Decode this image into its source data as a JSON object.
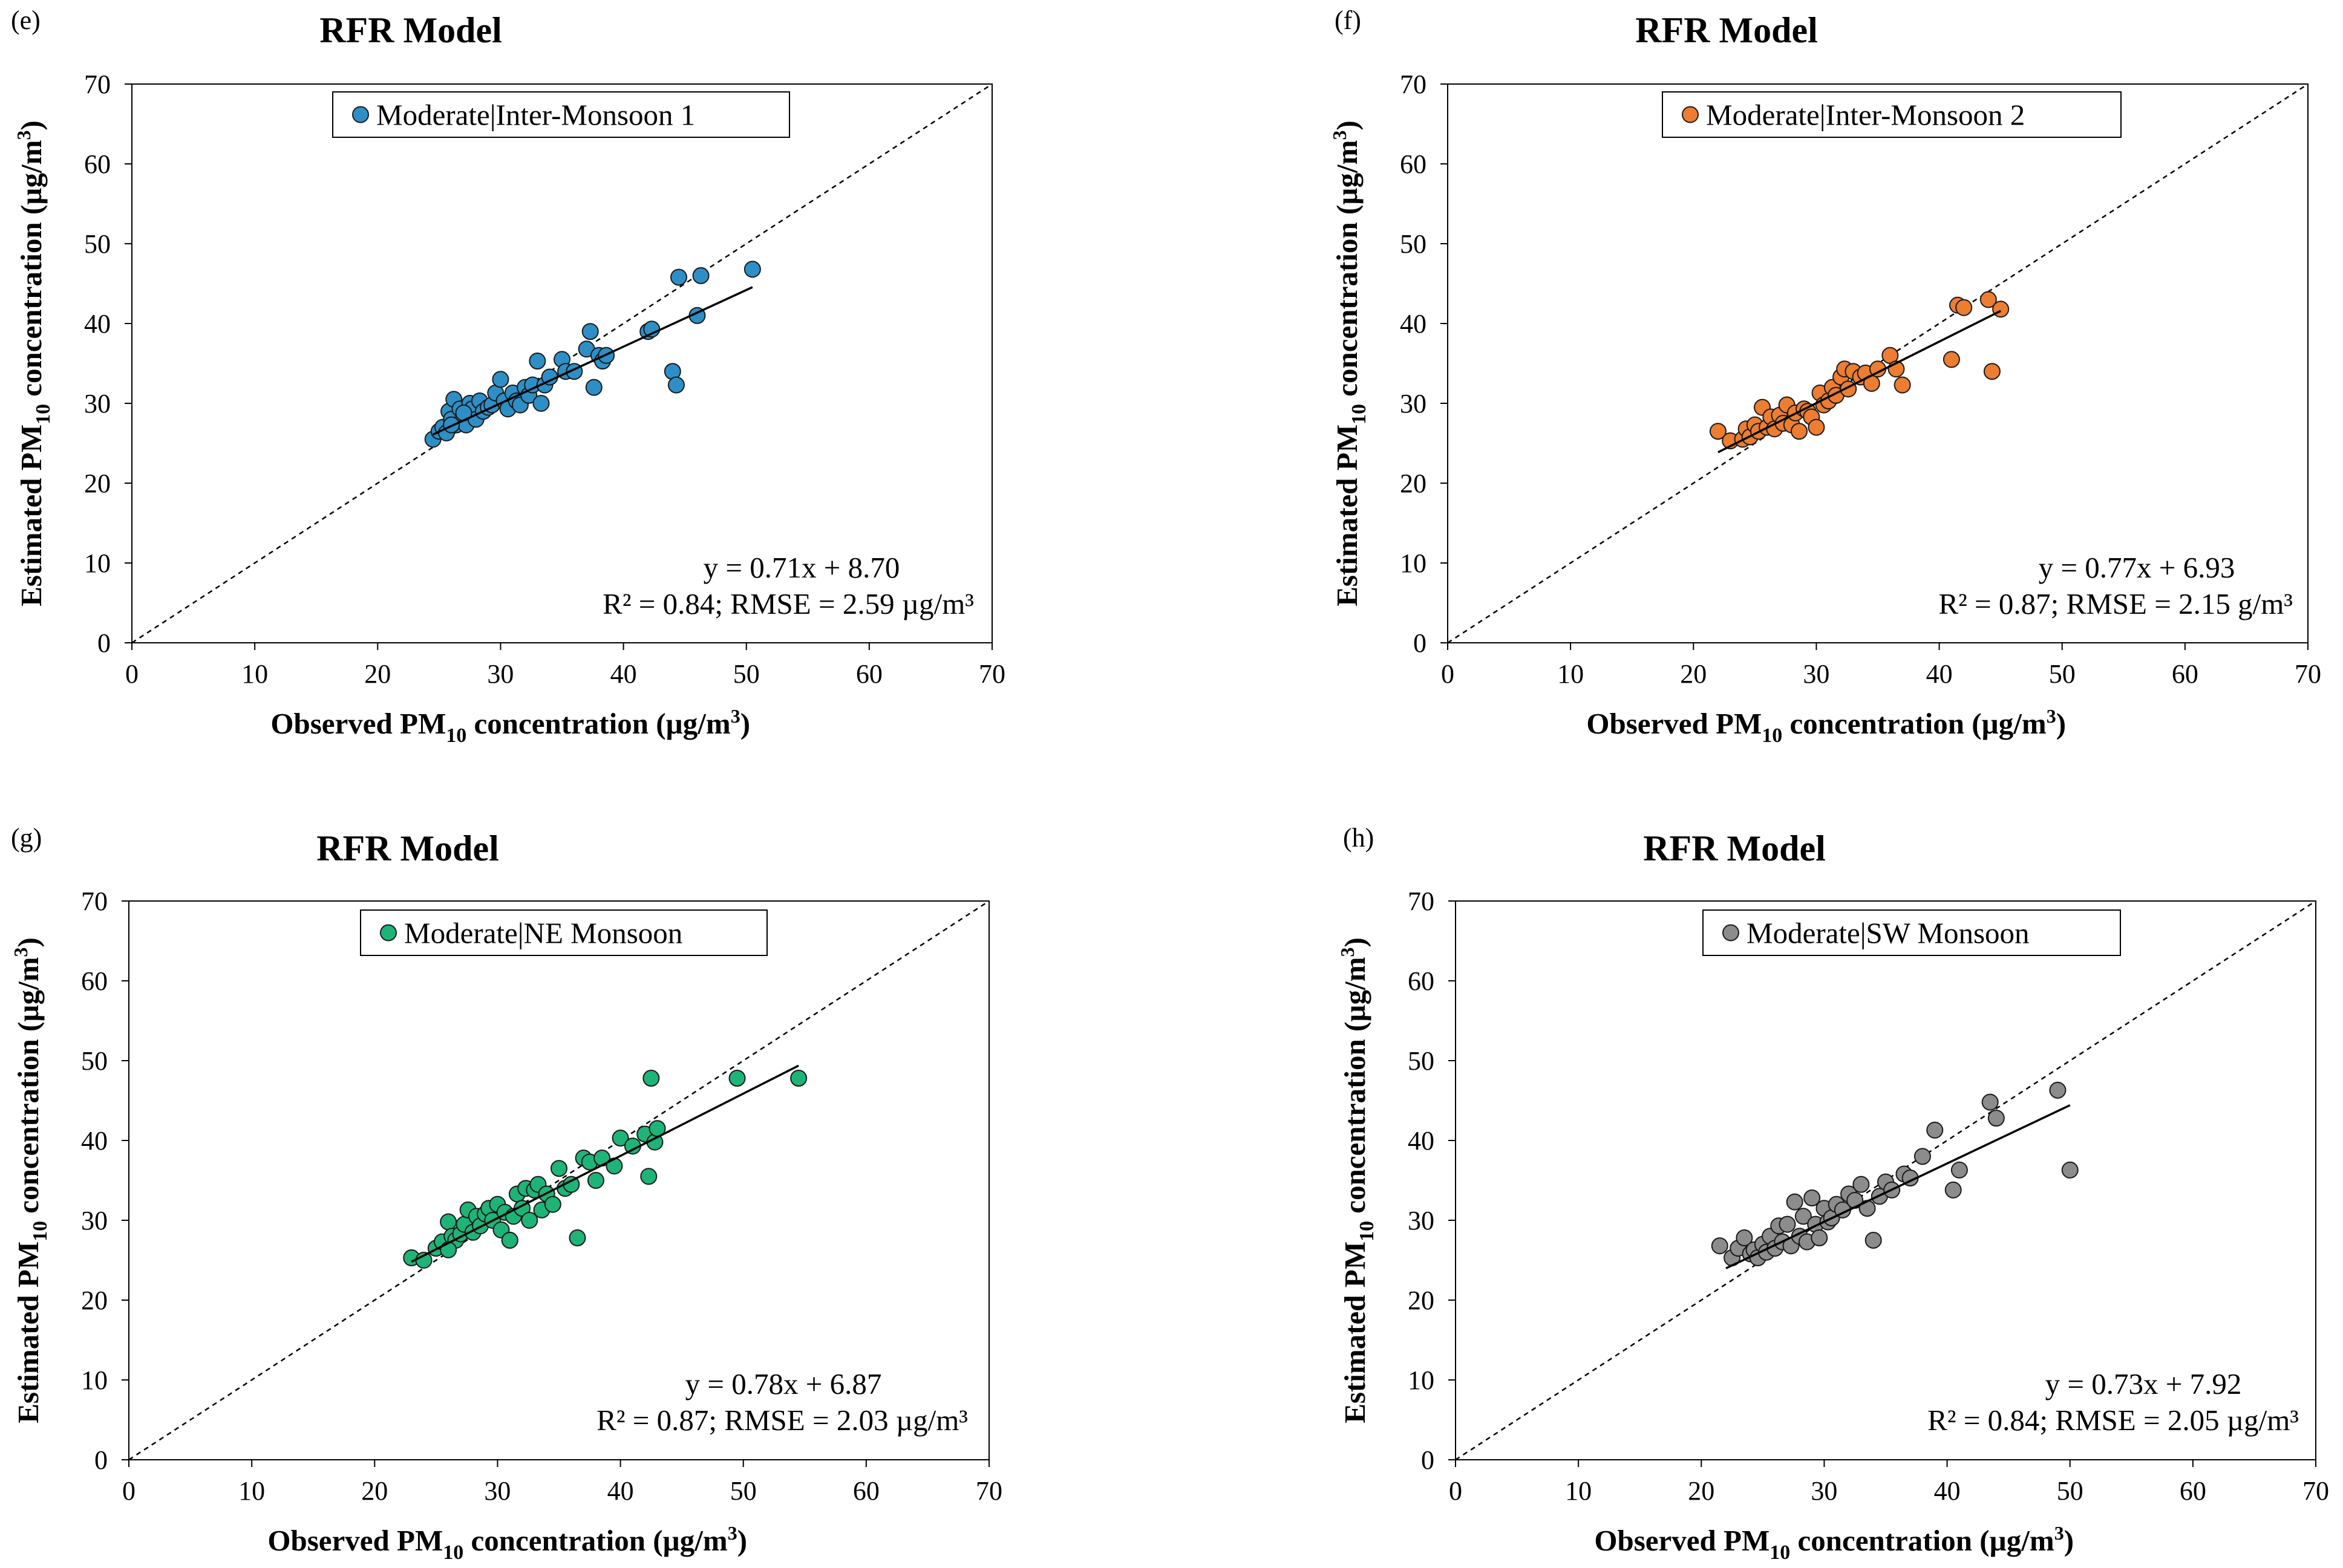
{
  "figure": {
    "axis_label_parts": {
      "y_prefix": "Estimated PM",
      "x_prefix": "Observed PM",
      "sub": "10",
      "unit_base": " concentration (µg/m",
      "sup": "3",
      "unit_close": ")"
    },
    "tick_labels": [
      "0",
      "10",
      "20",
      "30",
      "40",
      "50",
      "60",
      "70"
    ]
  },
  "chart_data": [
    {
      "type": "scatter",
      "panel_label": "(e)",
      "title": "RFR Model",
      "legend": "Moderate|Inter-Monsoon 1",
      "color": "#2E8FC7",
      "equation": "y = 0.71x + 8.70",
      "stats": "R² = 0.84; RMSE = 2.59 µg/m³",
      "slope": 0.71,
      "intercept": 8.7,
      "fit_x": [
        24.5,
        50.5
      ],
      "xlim": [
        0,
        70
      ],
      "ylim": [
        0,
        70
      ],
      "x": [
        24.5,
        25.0,
        25.3,
        25.6,
        25.8,
        26.0,
        26.2,
        26.4,
        26.7,
        27.0,
        27.2,
        27.5,
        27.7,
        28.0,
        28.3,
        28.6,
        29.0,
        29.3,
        29.6,
        30.0,
        30.3,
        30.6,
        31.0,
        31.3,
        31.6,
        32.0,
        32.3,
        32.6,
        33.0,
        33.3,
        33.6,
        34.0,
        35.0,
        35.3,
        36.0,
        37.0,
        37.3,
        37.6,
        38.0,
        38.3,
        38.6,
        42.0,
        42.3,
        44.0,
        44.3,
        44.5,
        46.0,
        46.3,
        50.5,
        26.0,
        27.0
      ],
      "y": [
        25.5,
        26.5,
        27.0,
        26.3,
        29.0,
        28.0,
        30.5,
        27.3,
        29.3,
        28.3,
        27.3,
        30.0,
        29.3,
        28.0,
        30.3,
        29.0,
        29.5,
        29.8,
        31.3,
        33.0,
        30.3,
        29.3,
        31.3,
        30.3,
        29.8,
        32.0,
        31.0,
        32.3,
        35.3,
        30.0,
        32.3,
        33.3,
        35.5,
        34.0,
        34.0,
        36.8,
        39.0,
        32.0,
        36.0,
        35.3,
        36.0,
        39.0,
        39.3,
        34.0,
        32.3,
        45.8,
        41.0,
        46.0,
        46.8,
        27.3,
        28.8
      ]
    },
    {
      "type": "scatter",
      "panel_label": "(f)",
      "title": "RFR Model",
      "legend": "Moderate|Inter-Monsoon 2",
      "color": "#ED7D31",
      "equation": "y = 0.77x + 6.93",
      "stats": "R² = 0.87; RMSE = 2.15 g/m³",
      "slope": 0.77,
      "intercept": 6.93,
      "fit_x": [
        22.0,
        45.0
      ],
      "xlim": [
        0,
        70
      ],
      "ylim": [
        0,
        70
      ],
      "x": [
        22.0,
        23.0,
        24.0,
        24.3,
        24.6,
        25.0,
        25.3,
        25.6,
        26.0,
        26.3,
        26.6,
        27.0,
        27.3,
        27.6,
        28.0,
        28.3,
        28.6,
        29.0,
        29.3,
        29.6,
        30.0,
        30.3,
        30.6,
        31.0,
        31.3,
        31.6,
        32.0,
        32.3,
        32.6,
        33.0,
        33.6,
        34.0,
        34.5,
        35.0,
        36.0,
        36.5,
        37.0,
        41.0,
        41.5,
        42.0,
        44.0,
        44.3,
        45.0
      ],
      "y": [
        26.5,
        25.3,
        25.5,
        26.8,
        25.8,
        27.3,
        26.5,
        29.5,
        27.0,
        28.3,
        26.8,
        28.5,
        27.5,
        29.8,
        27.3,
        28.8,
        26.5,
        29.3,
        29.0,
        28.3,
        27.0,
        31.3,
        29.8,
        30.3,
        32.0,
        31.0,
        33.3,
        34.3,
        31.8,
        34.0,
        33.3,
        33.8,
        32.5,
        34.3,
        36.0,
        34.3,
        32.3,
        35.5,
        42.3,
        42.0,
        43.0,
        34.0,
        41.8
      ]
    },
    {
      "type": "scatter",
      "panel_label": "(g)",
      "title": "RFR Model",
      "legend": "Moderate|NE Monsoon",
      "color": "#1EB478",
      "equation": "y = 0.78x + 6.87",
      "stats": "R² = 0.87; RMSE = 2.03 µg/m³",
      "slope": 0.78,
      "intercept": 6.87,
      "fit_x": [
        23.0,
        54.5
      ],
      "xlim": [
        0,
        70
      ],
      "ylim": [
        0,
        70
      ],
      "x": [
        23.0,
        24.0,
        25.0,
        25.5,
        26.0,
        26.3,
        26.6,
        27.0,
        27.3,
        27.6,
        28.0,
        28.3,
        28.6,
        29.0,
        29.3,
        29.6,
        30.0,
        30.3,
        30.6,
        31.0,
        31.3,
        31.6,
        32.0,
        32.3,
        32.6,
        33.0,
        33.3,
        33.6,
        34.0,
        34.5,
        35.0,
        35.5,
        36.0,
        36.5,
        37.0,
        37.5,
        38.0,
        38.5,
        39.5,
        40.0,
        41.0,
        42.0,
        42.3,
        42.5,
        42.8,
        43.0,
        49.5,
        54.5,
        26.0,
        31.0
      ],
      "y": [
        25.3,
        25.0,
        26.5,
        27.3,
        29.8,
        28.0,
        27.5,
        28.3,
        29.5,
        31.3,
        28.5,
        30.5,
        29.3,
        30.8,
        31.5,
        30.0,
        32.0,
        28.8,
        31.0,
        27.5,
        30.5,
        33.3,
        31.5,
        34.0,
        30.0,
        33.8,
        34.5,
        31.3,
        33.3,
        32.0,
        36.5,
        34.0,
        34.5,
        27.8,
        37.8,
        37.3,
        35.0,
        37.8,
        36.8,
        40.3,
        39.3,
        40.8,
        35.5,
        47.8,
        39.8,
        41.5,
        47.8,
        47.8,
        26.3,
        27.5
      ]
    },
    {
      "type": "scatter",
      "panel_label": "(h)",
      "title": "RFR Model",
      "legend": "Moderate|SW Monsoon",
      "color": "#8C8C8C",
      "equation": "y = 0.73x + 7.92",
      "stats": "R² = 0.84; RMSE = 2.05 µg/m³",
      "slope": 0.73,
      "intercept": 7.92,
      "fit_x": [
        22.0,
        50.0
      ],
      "xlim": [
        0,
        70
      ],
      "ylim": [
        0,
        70
      ],
      "x": [
        21.5,
        22.5,
        23.0,
        23.5,
        24.0,
        24.3,
        24.6,
        25.0,
        25.3,
        25.6,
        26.0,
        26.3,
        26.6,
        27.0,
        27.3,
        27.6,
        28.0,
        28.3,
        28.6,
        29.0,
        29.3,
        29.6,
        30.0,
        30.3,
        30.6,
        31.0,
        31.5,
        32.0,
        32.5,
        33.0,
        33.5,
        34.0,
        34.5,
        35.0,
        35.5,
        36.5,
        37.0,
        38.0,
        39.0,
        40.5,
        41.0,
        43.5,
        44.0,
        49.0,
        50.0
      ],
      "y": [
        26.8,
        25.3,
        26.5,
        27.8,
        25.8,
        26.3,
        25.3,
        27.0,
        26.0,
        28.0,
        26.5,
        29.3,
        27.3,
        29.5,
        26.8,
        32.3,
        28.0,
        30.5,
        27.3,
        32.8,
        29.5,
        27.8,
        31.5,
        29.8,
        30.3,
        32.0,
        31.3,
        33.3,
        32.5,
        34.5,
        31.5,
        27.5,
        33.0,
        34.8,
        33.8,
        35.8,
        35.3,
        38.0,
        41.3,
        33.8,
        36.3,
        44.8,
        42.8,
        46.3,
        36.3
      ]
    }
  ]
}
